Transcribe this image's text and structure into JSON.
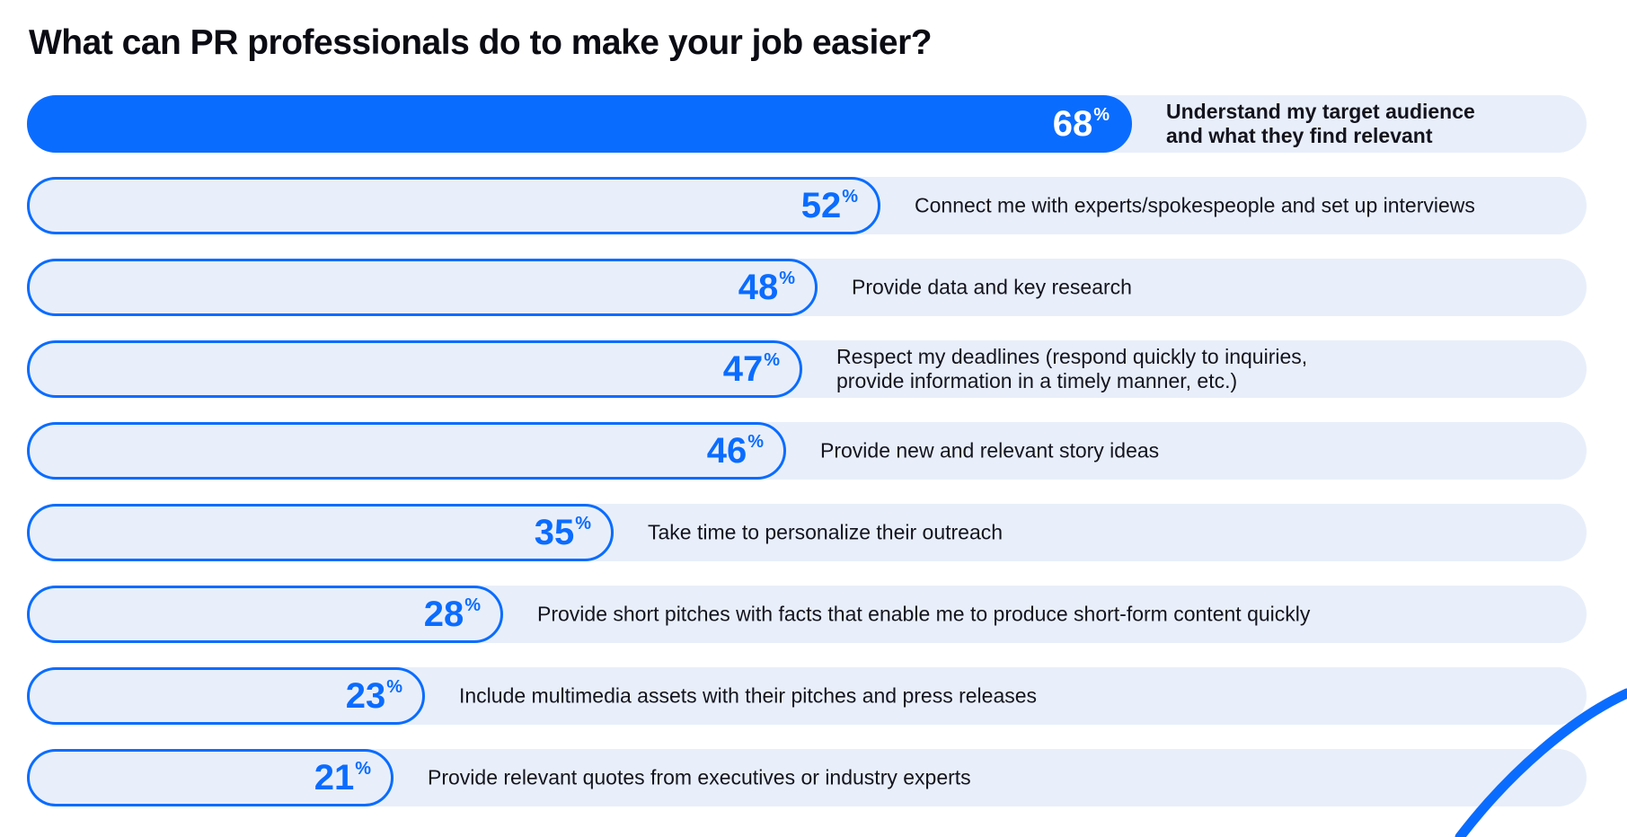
{
  "title": "What can PR professionals do to make your job easier?",
  "colors": {
    "accent": "#0a6cff",
    "track": "#e8effa",
    "text": "#14141e"
  },
  "chart_data": {
    "type": "bar",
    "orientation": "horizontal",
    "title": "What can PR professionals do to make your job easier?",
    "unit": "%",
    "xlim": [
      0,
      100
    ],
    "grid": false,
    "highlight_index": 0,
    "categories": [
      "Understand my target audience\nand what they find relevant",
      "Connect me with experts/spokespeople and set up interviews",
      "Provide data and key research",
      "Respect my deadlines (respond quickly to inquiries,\nprovide information in a timely manner, etc.)",
      "Provide new and relevant story ideas",
      "Take time to personalize their outreach",
      "Provide short pitches with facts that enable me to produce short-form content quickly",
      "Include multimedia assets with their pitches and press releases",
      "Provide relevant quotes from executives or industry experts"
    ],
    "values": [
      68,
      52,
      48,
      47,
      46,
      35,
      28,
      23,
      21
    ],
    "value_labels": [
      "68",
      "52",
      "48",
      "47",
      "46",
      "35",
      "28",
      "23",
      "21"
    ]
  }
}
